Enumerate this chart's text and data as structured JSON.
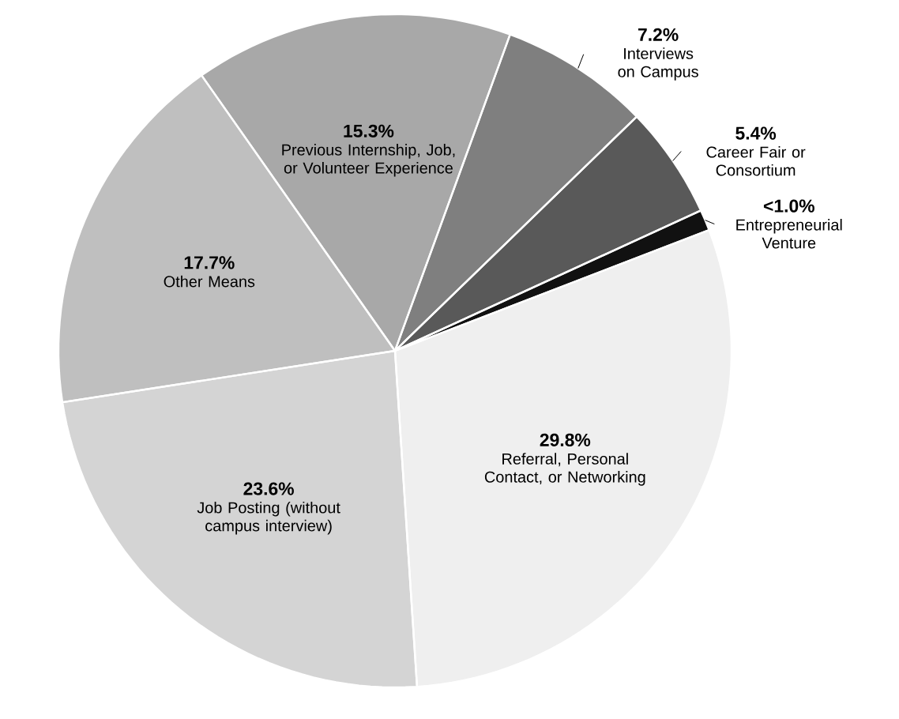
{
  "chart_data": {
    "type": "pie",
    "categories": [
      "Interviews on Campus",
      "Career Fair or Consortium",
      "Entrepreneurial Venture",
      "Referral, Personal Contact, or Networking",
      "Job Posting (without campus interview)",
      "Other Means",
      "Previous Internship, Job, or Volunteer Experience"
    ],
    "values": [
      7.2,
      5.4,
      1.0,
      29.8,
      23.6,
      17.7,
      15.3
    ],
    "value_labels": [
      "7.2%",
      "5.4%",
      "<1.0%",
      "29.8%",
      "23.6%",
      "17.7%",
      "15.3%"
    ],
    "colors": [
      "#7f7f7f",
      "#595959",
      "#111111",
      "#efefef",
      "#d4d4d4",
      "#bfbfbf",
      "#a8a8a8"
    ]
  }
}
